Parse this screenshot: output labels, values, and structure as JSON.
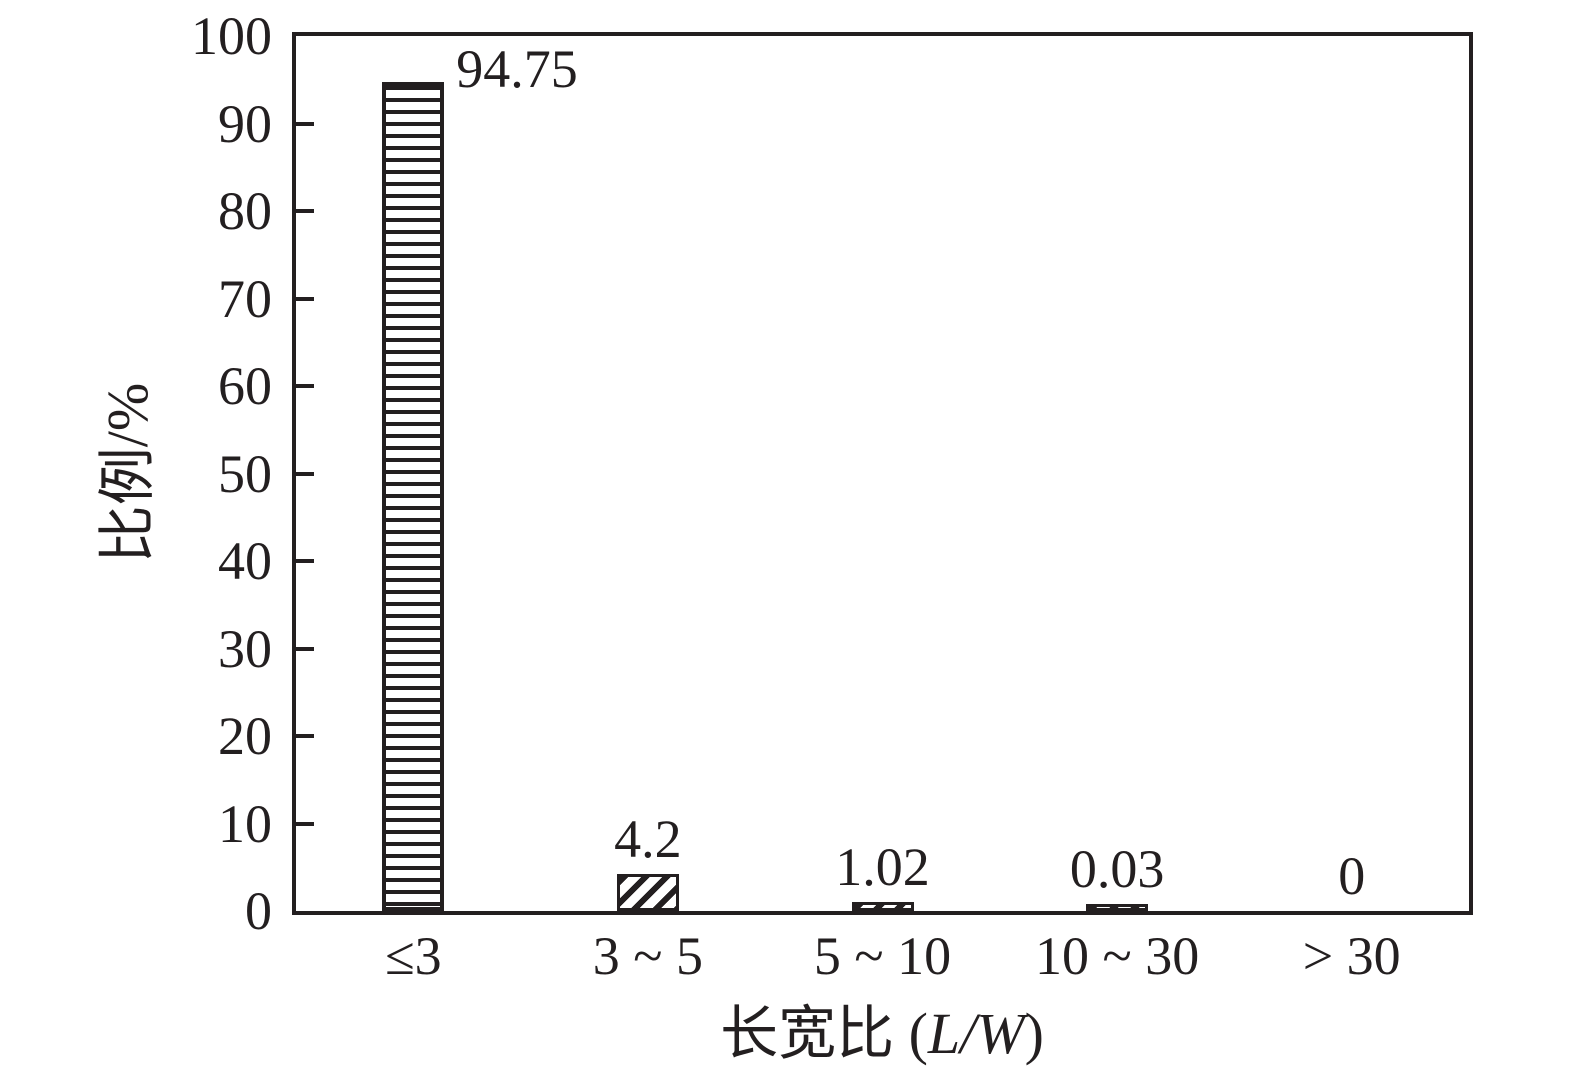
{
  "figure": {
    "background": "#ffffff",
    "ink_color": "#231f20"
  },
  "chart_data": {
    "type": "bar",
    "title": "",
    "categories": [
      "≤3",
      "3 ~ 5",
      "5 ~ 10",
      "10 ~ 30",
      "> 30"
    ],
    "values": [
      94.75,
      4.2,
      1.02,
      0.03,
      0
    ],
    "value_labels": [
      "94.75",
      "4.2",
      "1.02",
      "0.03",
      "0"
    ],
    "value_label_placement": [
      "right-of-bar-top",
      "above-bar",
      "above-bar",
      "above-bar",
      "above-bar"
    ],
    "bar_patterns": [
      "horizontal-lines",
      "diagonal-hatch",
      "diagonal-hatch",
      "diagonal-hatch",
      "none"
    ],
    "xlabel": {
      "full": "长宽比 (L/W)",
      "prefix": "长宽比 (",
      "variable": "L/W",
      "suffix": ")"
    },
    "ylabel": "比例/%",
    "ylim": [
      0,
      100
    ],
    "yticks": [
      "0",
      "10",
      "20",
      "30",
      "40",
      "50",
      "60",
      "70",
      "80",
      "90",
      "100"
    ],
    "grid": false,
    "legend_position": "none",
    "bar_fill": "#ffffff",
    "hatch_color": "#231f20"
  }
}
